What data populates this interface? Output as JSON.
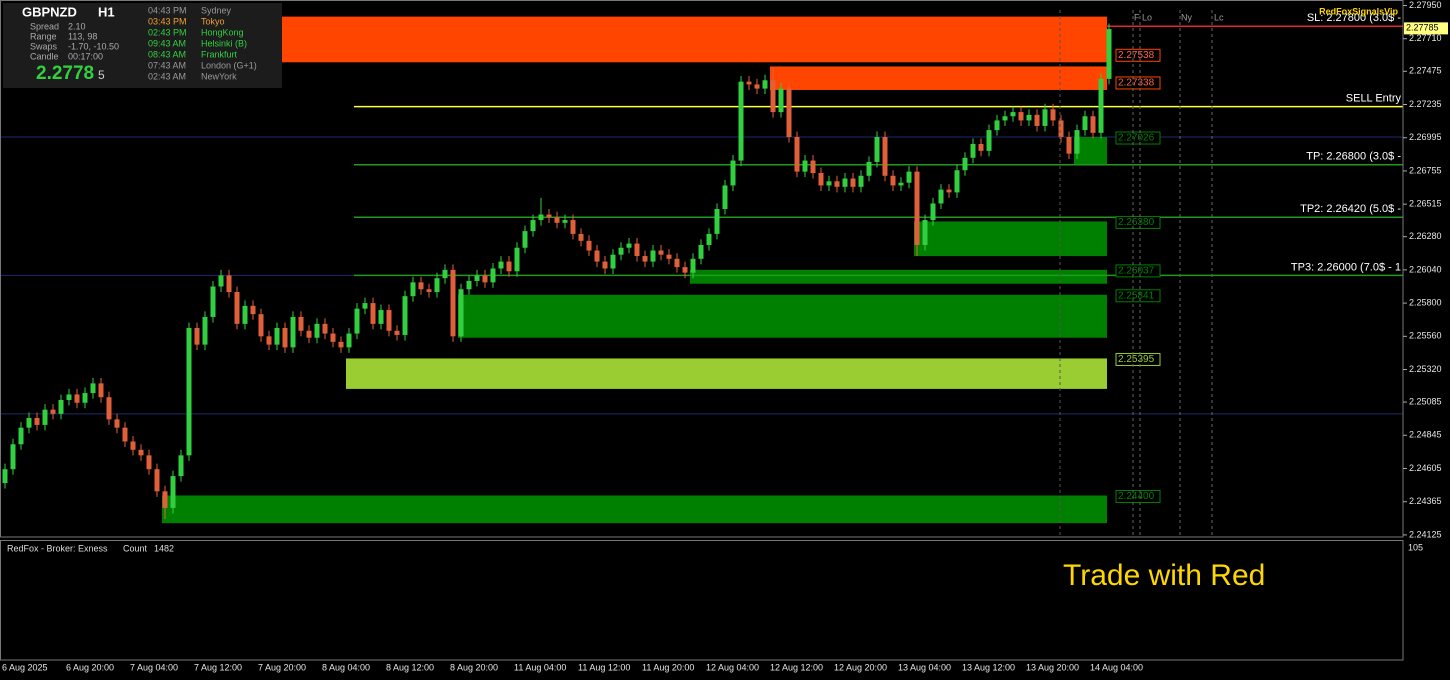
{
  "chart_data": {
    "type": "candlestick",
    "categories": [
      "6 Aug 2025",
      null,
      null,
      null,
      null,
      null,
      null,
      null,
      "6 Aug 20:00",
      null,
      null,
      null,
      null,
      null,
      null,
      null,
      "7 Aug 04:00",
      null,
      null,
      null,
      null,
      null,
      null,
      null,
      "7 Aug 12:00",
      null,
      null,
      null,
      null,
      null,
      null,
      null,
      "7 Aug 20:00",
      null,
      null,
      null,
      null,
      null,
      null,
      null,
      "8 Aug 04:00",
      null,
      null,
      null,
      null,
      null,
      null,
      null,
      "8 Aug 12:00",
      null,
      null,
      null,
      null,
      null,
      null,
      null,
      "8 Aug 20:00",
      null,
      null,
      null,
      null,
      null,
      null,
      null,
      "11 Aug 04:00",
      null,
      null,
      null,
      null,
      null,
      null,
      null,
      "11 Aug 12:00",
      null,
      null,
      null,
      null,
      null,
      null,
      null,
      "11 Aug 20:00",
      null,
      null,
      null,
      null,
      null,
      null,
      null,
      "12 Aug 04:00",
      null,
      null,
      null,
      null,
      null,
      null,
      null,
      "12 Aug 12:00",
      null,
      null,
      null,
      null,
      null,
      null,
      null,
      "12 Aug 20:00",
      null,
      null,
      null,
      null,
      null,
      null,
      null,
      "13 Aug 04:00",
      null,
      null,
      null,
      null,
      null,
      null,
      null,
      "13 Aug 12:00",
      null,
      null,
      null,
      null,
      null,
      null,
      null,
      "13 Aug 20:00",
      null,
      null,
      null,
      null,
      null,
      null,
      null,
      "14 Aug 04:00",
      null,
      null
    ],
    "open": [
      2.245,
      2.246,
      2.2478,
      2.249,
      2.2497,
      2.2492,
      2.2503,
      2.25,
      2.251,
      2.2514,
      2.2508,
      2.2515,
      2.2522,
      2.2512,
      2.2496,
      2.249,
      2.248,
      2.2474,
      2.247,
      2.246,
      2.2444,
      2.2432,
      2.2455,
      2.247,
      2.2562,
      2.255,
      2.257,
      2.2592,
      2.26,
      2.2588,
      2.2565,
      2.2578,
      2.2572,
      2.2556,
      2.255,
      2.2562,
      2.2548,
      2.257,
      2.256,
      2.2555,
      2.2565,
      2.2558,
      2.2552,
      2.2548,
      2.2558,
      2.2576,
      2.258,
      2.2565,
      2.2575,
      2.256,
      2.2557,
      2.2585,
      2.2595,
      2.259,
      2.2588,
      2.2598,
      2.2604,
      2.2556,
      2.259,
      2.2596,
      2.26,
      2.2595,
      2.2605,
      2.261,
      2.2603,
      2.262,
      2.2632,
      2.264,
      2.2644,
      2.2642,
      2.2638,
      2.264,
      2.263,
      2.2625,
      2.2618,
      2.261,
      2.2605,
      2.2615,
      2.262,
      2.2623,
      2.2614,
      2.261,
      2.2618,
      2.2615,
      2.2612,
      2.2606,
      2.2602,
      2.2612,
      2.2622,
      2.263,
      2.2648,
      2.2665,
      2.2683,
      2.274,
      2.2738,
      2.2735,
      2.2741,
      2.2718,
      2.2735,
      2.27,
      2.2675,
      2.2683,
      2.2674,
      2.2665,
      2.2668,
      2.2664,
      2.267,
      2.2664,
      2.2672,
      2.2682,
      2.27,
      2.2672,
      2.2665,
      2.2667,
      2.2675,
      2.2622,
      2.264,
      2.2652,
      2.2662,
      2.266,
      2.2676,
      2.2685,
      2.2695,
      2.269,
      2.2705,
      2.2712,
      2.2715,
      2.2718,
      2.2712,
      2.2716,
      2.2708,
      2.272,
      2.2712,
      2.27,
      2.2688,
      2.2705,
      2.2715,
      2.2703,
      2.2742
    ],
    "high": [
      2.2464,
      2.2482,
      2.2494,
      2.2501,
      2.2501,
      2.2507,
      2.2507,
      2.2514,
      2.2518,
      2.2518,
      2.2519,
      2.2526,
      2.2526,
      2.2516,
      2.25,
      2.2494,
      2.2484,
      2.2478,
      2.2474,
      2.2464,
      2.2448,
      2.2459,
      2.2474,
      2.2566,
      2.2566,
      2.2574,
      2.2596,
      2.2604,
      2.2604,
      2.2592,
      2.2582,
      2.2582,
      2.2576,
      2.256,
      2.2566,
      2.2566,
      2.2574,
      2.2574,
      2.2564,
      2.2569,
      2.2569,
      2.2562,
      2.2556,
      2.2562,
      2.258,
      2.2584,
      2.2584,
      2.2579,
      2.2579,
      2.2564,
      2.2589,
      2.2599,
      2.2599,
      2.2594,
      2.2602,
      2.2608,
      2.2608,
      2.2594,
      2.26,
      2.2604,
      2.2604,
      2.2609,
      2.2614,
      2.2614,
      2.2624,
      2.2636,
      2.2644,
      2.2656,
      2.2648,
      2.2646,
      2.2644,
      2.2644,
      2.2634,
      2.2629,
      2.2622,
      2.2614,
      2.2619,
      2.2624,
      2.2627,
      2.2627,
      2.2618,
      2.2622,
      2.2622,
      2.2619,
      2.2616,
      2.261,
      2.2616,
      2.2626,
      2.2634,
      2.2652,
      2.2669,
      2.2687,
      2.2744,
      2.2744,
      2.2742,
      2.2745,
      2.275,
      2.2739,
      2.2739,
      2.2704,
      2.2687,
      2.2687,
      2.2678,
      2.2672,
      2.2672,
      2.2674,
      2.2674,
      2.2676,
      2.2686,
      2.2704,
      2.2704,
      2.2676,
      2.2671,
      2.2679,
      2.2679,
      2.2644,
      2.2656,
      2.2666,
      2.2666,
      2.268,
      2.2689,
      2.2699,
      2.2699,
      2.2709,
      2.2716,
      2.2719,
      2.2722,
      2.2722,
      2.272,
      2.272,
      2.2724,
      2.2724,
      2.2716,
      2.2704,
      2.2709,
      2.2719,
      2.2719,
      2.2746,
      2.2782
    ],
    "low": [
      2.2446,
      2.2456,
      2.2474,
      2.2486,
      2.2488,
      2.2488,
      2.2496,
      2.2496,
      2.2506,
      2.2504,
      2.2504,
      2.2511,
      2.2508,
      2.2492,
      2.2486,
      2.2476,
      2.247,
      2.2466,
      2.2456,
      2.244,
      2.2424,
      2.2428,
      2.2451,
      2.2466,
      2.2546,
      2.2546,
      2.2566,
      2.2588,
      2.2584,
      2.2561,
      2.2561,
      2.2568,
      2.2552,
      2.2546,
      2.2546,
      2.2544,
      2.2544,
      2.2556,
      2.2551,
      2.2551,
      2.2554,
      2.2548,
      2.2544,
      2.2544,
      2.2554,
      2.2572,
      2.2561,
      2.2561,
      2.2556,
      2.2553,
      2.2553,
      2.2581,
      2.2586,
      2.2584,
      2.2584,
      2.2594,
      2.2552,
      2.2552,
      2.2586,
      2.2592,
      2.2591,
      2.2591,
      2.2601,
      2.2599,
      2.2599,
      2.2616,
      2.2628,
      2.2636,
      2.2638,
      2.2634,
      2.2634,
      2.2626,
      2.2621,
      2.2614,
      2.2606,
      2.2601,
      2.2601,
      2.2611,
      2.2616,
      2.261,
      2.2606,
      2.2606,
      2.2611,
      2.2608,
      2.2602,
      2.2598,
      2.2598,
      2.2608,
      2.2618,
      2.2626,
      2.2644,
      2.2661,
      2.2679,
      2.2734,
      2.2731,
      2.2731,
      2.2714,
      2.2714,
      2.2696,
      2.2671,
      2.2671,
      2.267,
      2.2661,
      2.2661,
      2.266,
      2.266,
      2.266,
      2.266,
      2.2668,
      2.2678,
      2.2668,
      2.2661,
      2.2661,
      2.2663,
      2.2614,
      2.2618,
      2.2636,
      2.2648,
      2.2656,
      2.2656,
      2.2672,
      2.2681,
      2.2686,
      2.2686,
      2.2701,
      2.2708,
      2.2711,
      2.2708,
      2.2708,
      2.2704,
      2.2704,
      2.2708,
      2.2696,
      2.2684,
      2.2684,
      2.2701,
      2.2699,
      2.2699,
      2.2738
    ],
    "close": [
      2.246,
      2.2478,
      2.249,
      2.2497,
      2.2492,
      2.2503,
      2.25,
      2.251,
      2.2514,
      2.2508,
      2.2515,
      2.2522,
      2.2512,
      2.2496,
      2.249,
      2.248,
      2.2474,
      2.247,
      2.246,
      2.2444,
      2.2432,
      2.2455,
      2.247,
      2.2562,
      2.255,
      2.257,
      2.2592,
      2.26,
      2.2588,
      2.2565,
      2.2578,
      2.2572,
      2.2556,
      2.255,
      2.2562,
      2.2548,
      2.257,
      2.256,
      2.2555,
      2.2565,
      2.2558,
      2.2552,
      2.2548,
      2.2558,
      2.2576,
      2.258,
      2.2565,
      2.2575,
      2.256,
      2.2557,
      2.2585,
      2.2595,
      2.259,
      2.2588,
      2.2598,
      2.2604,
      2.2556,
      2.259,
      2.2596,
      2.26,
      2.2595,
      2.2605,
      2.261,
      2.2603,
      2.262,
      2.2632,
      2.264,
      2.2644,
      2.2642,
      2.2638,
      2.264,
      2.263,
      2.2625,
      2.2618,
      2.261,
      2.2605,
      2.2615,
      2.262,
      2.2623,
      2.2614,
      2.261,
      2.2618,
      2.2615,
      2.2612,
      2.2606,
      2.2602,
      2.2612,
      2.2622,
      2.263,
      2.2648,
      2.2665,
      2.2683,
      2.274,
      2.2738,
      2.2735,
      2.2741,
      2.2718,
      2.2735,
      2.27,
      2.2675,
      2.2683,
      2.2674,
      2.2665,
      2.2668,
      2.2664,
      2.267,
      2.2664,
      2.2672,
      2.2682,
      2.27,
      2.2672,
      2.2665,
      2.2667,
      2.2675,
      2.2622,
      2.264,
      2.2652,
      2.2662,
      2.266,
      2.2676,
      2.2685,
      2.2695,
      2.269,
      2.2705,
      2.2712,
      2.2715,
      2.2718,
      2.2712,
      2.2716,
      2.2708,
      2.272,
      2.2712,
      2.27,
      2.2688,
      2.2705,
      2.2715,
      2.2703,
      2.2742,
      2.2778
    ],
    "up_color": "#32d040",
    "down_color": "#e0603a",
    "ylim": [
      2.2411,
      2.2799
    ],
    "yticks": [
      {
        "value": 2.2795,
        "label": "2.27950"
      },
      {
        "value": 2.2771,
        "label": "2.27710"
      },
      2.27475,
      2.27235,
      2.26995,
      2.26755,
      2.26515,
      {
        "value": 2.2628,
        "label": "2.26280"
      },
      {
        "value": 2.2604,
        "label": "2.26040"
      },
      {
        "value": 2.258,
        "label": "2.25800"
      },
      {
        "value": 2.2556,
        "label": "2.25560"
      },
      {
        "value": 2.2532,
        "label": "2.25320"
      },
      2.25085,
      2.24845,
      2.24605,
      2.24365,
      2.24125
    ],
    "last_price": 2.27785,
    "round_levels": [
      2.27,
      2.26,
      2.25
    ],
    "zones": [
      {
        "label": "2.27538",
        "top": 2.2787,
        "bottom": 2.2754,
        "start": 35,
        "color": "#ff4500"
      },
      {
        "label": "2.27338",
        "top": 2.2751,
        "bottom": 2.2734,
        "start": 96,
        "color": "#ff4500"
      },
      {
        "label": "2.27026",
        "top": 2.27,
        "bottom": 2.268,
        "start": 134,
        "color": "#008000"
      },
      {
        "label": "2.26380",
        "top": 2.2639,
        "bottom": 2.2614,
        "start": 114,
        "color": "#008000"
      },
      {
        "label": "2.26037",
        "top": 2.2604,
        "bottom": 2.2594,
        "start": 86,
        "color": "#008000"
      },
      {
        "label": "2.25841",
        "top": 2.2586,
        "bottom": 2.2555,
        "start": 57,
        "color": "#008000"
      },
      {
        "label": "2.25395",
        "top": 2.254,
        "bottom": 2.2518,
        "start": 43,
        "color": "#9acd32"
      },
      {
        "label": "2.24400",
        "top": 2.2441,
        "bottom": 2.2421,
        "start": 20,
        "color": "#008000"
      }
    ],
    "trade_lines": [
      {
        "label": "SL: 2.27800 (3.0$ -",
        "level": 2.278,
        "start": 138,
        "color": "#e02828"
      },
      {
        "label": "SELL Entry",
        "level": 2.2722,
        "start": 44,
        "color": "#ffff40"
      },
      {
        "label": "TP: 2.26800 (3.0$ -",
        "level": 2.268,
        "start": 44,
        "color": "#1f9a1f"
      },
      {
        "label": "TP2: 2.26420 (5.0$ -",
        "level": 2.2642,
        "start": 44,
        "color": "#1f9a1f"
      },
      {
        "label": "TP3: 2.26000 (7.0$ - 1",
        "level": 2.26,
        "start": 44,
        "color": "#1f9a1f"
      }
    ]
  },
  "panel": {
    "symbol": "GBPNZD",
    "timeframe": "H1",
    "stats": [
      [
        "Spread",
        "2.10"
      ],
      [
        "Range",
        "113, 98"
      ],
      [
        "Swaps",
        "-1.70, -10.50"
      ],
      [
        "Candle",
        "00:17:00"
      ]
    ],
    "price_big": "2.2778",
    "price_small": "5",
    "sessions": [
      [
        "04:43 PM",
        "Sydney"
      ],
      [
        "03:43 PM",
        "Tokyo"
      ],
      [
        "02:43 PM",
        "HongKong"
      ],
      [
        "09:43 AM",
        "Helsinki  (B)"
      ],
      [
        "08:43 AM",
        "Frankfurt"
      ],
      [
        "07:43 AM",
        "London  (G+1)"
      ],
      [
        "02:43 AM",
        "NewYork"
      ]
    ]
  },
  "brand": "RedFoxSignalsVip",
  "session_markers": [
    "F Lo",
    "Ny",
    "Lc"
  ],
  "indicator_pane": {
    "title": "RedFox - Broker: Exness",
    "count_label": "Count",
    "count": 1482,
    "ytick": 105,
    "banner": "Trade with Red"
  }
}
